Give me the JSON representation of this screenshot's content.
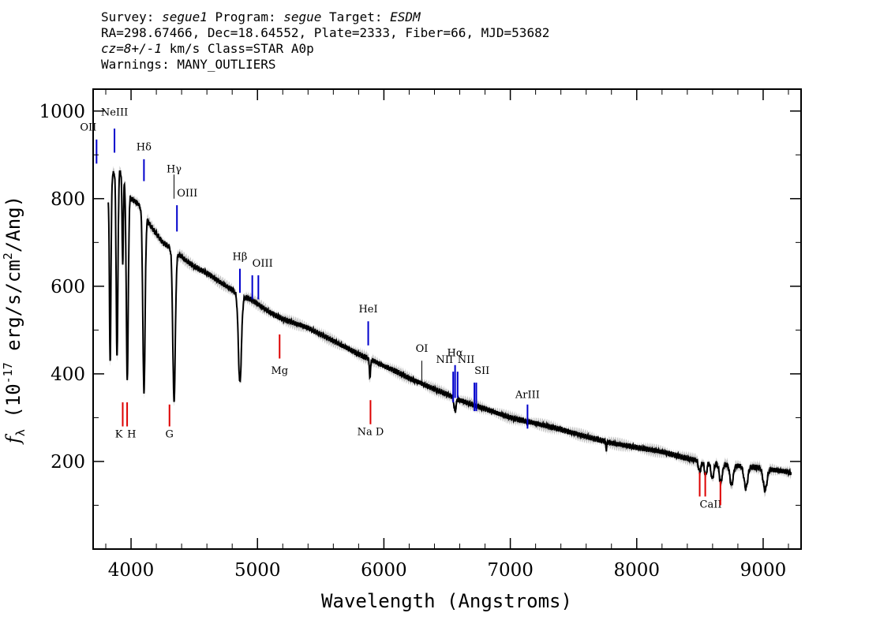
{
  "header": {
    "survey_label": "Survey:",
    "survey_value": "segue1",
    "program_label": "Program:",
    "program_value": "segue",
    "target_label": "Target:",
    "target_value": "ESDM",
    "line2": "RA=298.67466, Dec=18.64552, Plate=2333, Fiber=66, MJD=53682",
    "cz_value": "cz=8+/-1",
    "line3_rest": " km/s Class=STAR A0p",
    "line4": "Warnings: MANY_OUTLIERS"
  },
  "chart_data": {
    "type": "line",
    "title": "",
    "xlabel": "Wavelength (Angstroms)",
    "ylabel_main": "f",
    "ylabel_sub": "λ",
    "ylabel_units": " (10",
    "ylabel_exp": "-17",
    "ylabel_units2": " erg/s/cm",
    "ylabel_exp2": "2",
    "ylabel_units3": "/Ang)",
    "xlim": [
      3700,
      9300
    ],
    "ylim": [
      0,
      1050
    ],
    "x_ticks": [
      4000,
      5000,
      6000,
      7000,
      8000,
      9000
    ],
    "x_tick_labels": [
      "4000",
      "5000",
      "6000",
      "7000",
      "8000",
      "9000"
    ],
    "y_ticks": [
      200,
      400,
      600,
      800,
      1000
    ],
    "y_tick_labels": [
      "200",
      "400",
      "600",
      "800",
      "1000"
    ],
    "grid": false,
    "colors": {
      "spectrum": "#000000",
      "error": "#b0b0b0",
      "emission": "#0000cc",
      "absorption": "#dd0000",
      "thin": "#000000"
    },
    "continuum": [
      [
        3820,
        810
      ],
      [
        3850,
        850
      ],
      [
        3880,
        870
      ],
      [
        3920,
        860
      ],
      [
        3960,
        840
      ],
      [
        4000,
        800
      ],
      [
        4050,
        790
      ],
      [
        4100,
        770
      ],
      [
        4150,
        740
      ],
      [
        4200,
        720
      ],
      [
        4250,
        700
      ],
      [
        4300,
        690
      ],
      [
        4350,
        675
      ],
      [
        4400,
        668
      ],
      [
        4450,
        655
      ],
      [
        4500,
        645
      ],
      [
        4600,
        630
      ],
      [
        4700,
        610
      ],
      [
        4800,
        592
      ],
      [
        4850,
        580
      ],
      [
        4950,
        570
      ],
      [
        5000,
        560
      ],
      [
        5100,
        540
      ],
      [
        5200,
        525
      ],
      [
        5300,
        515
      ],
      [
        5400,
        505
      ],
      [
        5500,
        490
      ],
      [
        5600,
        475
      ],
      [
        5700,
        460
      ],
      [
        5800,
        445
      ],
      [
        5900,
        432
      ],
      [
        6000,
        418
      ],
      [
        6100,
        405
      ],
      [
        6200,
        390
      ],
      [
        6300,
        378
      ],
      [
        6400,
        365
      ],
      [
        6500,
        353
      ],
      [
        6600,
        340
      ],
      [
        6700,
        330
      ],
      [
        6800,
        320
      ],
      [
        7000,
        300
      ],
      [
        7200,
        287
      ],
      [
        7400,
        273
      ],
      [
        7600,
        257
      ],
      [
        7800,
        242
      ],
      [
        8000,
        232
      ],
      [
        8200,
        222
      ],
      [
        8400,
        207
      ],
      [
        8600,
        196
      ],
      [
        8800,
        190
      ],
      [
        9000,
        185
      ],
      [
        9100,
        180
      ],
      [
        9220,
        175
      ]
    ],
    "absorption_features": [
      {
        "center": 3835,
        "depth": 400,
        "width": 6
      },
      {
        "center": 3889,
        "depth": 430,
        "width": 7
      },
      {
        "center": 3934,
        "depth": 200,
        "width": 5
      },
      {
        "center": 3970,
        "depth": 440,
        "width": 8
      },
      {
        "center": 4102,
        "depth": 410,
        "width": 9
      },
      {
        "center": 4340,
        "depth": 340,
        "width": 10
      },
      {
        "center": 4861,
        "depth": 200,
        "width": 12
      },
      {
        "center": 5890,
        "depth": 40,
        "width": 5
      },
      {
        "center": 6563,
        "depth": 30,
        "width": 8
      },
      {
        "center": 7760,
        "depth": 20,
        "width": 3
      },
      {
        "center": 8498,
        "depth": 25,
        "width": 10
      },
      {
        "center": 8545,
        "depth": 30,
        "width": 10
      },
      {
        "center": 8598,
        "depth": 35,
        "width": 11
      },
      {
        "center": 8665,
        "depth": 40,
        "width": 12
      },
      {
        "center": 8750,
        "depth": 45,
        "width": 13
      },
      {
        "center": 8863,
        "depth": 50,
        "width": 14
      },
      {
        "center": 9015,
        "depth": 50,
        "width": 15
      }
    ],
    "line_markers": [
      {
        "label": "OII",
        "x": 3727,
        "y0": 880,
        "y1": 935,
        "label_y": 955,
        "color": "emission",
        "anchor": "end"
      },
      {
        "label": "NeIII",
        "x": 3869,
        "y0": 905,
        "y1": 960,
        "label_y": 990,
        "color": "emission",
        "anchor": "middle"
      },
      {
        "label": "Hδ",
        "x": 4102,
        "y0": 840,
        "y1": 890,
        "label_y": 910,
        "color": "emission",
        "anchor": "middle"
      },
      {
        "label": "Hγ",
        "x": 4340,
        "y0": 800,
        "y1": 855,
        "label_y": 860,
        "color": "thin",
        "anchor": "middle"
      },
      {
        "label": "OIII",
        "x": 4363,
        "y0": 725,
        "y1": 785,
        "label_y": 805,
        "color": "emission",
        "anchor": "start"
      },
      {
        "label": "Hβ",
        "x": 4861,
        "y0": 585,
        "y1": 640,
        "label_y": 660,
        "color": "emission",
        "anchor": "middle"
      },
      {
        "label": "OIII",
        "x": 4959,
        "y0": 570,
        "y1": 625,
        "label_y": 645,
        "color": "emission",
        "anchor": "start"
      },
      {
        "label": "",
        "x": 5007,
        "y0": 570,
        "y1": 625,
        "label_y": 0,
        "color": "emission",
        "anchor": "start"
      },
      {
        "label": "HeI",
        "x": 5876,
        "y0": 465,
        "y1": 520,
        "label_y": 540,
        "color": "emission",
        "anchor": "middle"
      },
      {
        "label": "OI",
        "x": 6300,
        "y0": 375,
        "y1": 430,
        "label_y": 450,
        "color": "thin",
        "anchor": "middle"
      },
      {
        "label": "NII",
        "x": 6548,
        "y0": 335,
        "y1": 405,
        "label_y": 425,
        "color": "emission",
        "anchor": "end"
      },
      {
        "label": "Hα",
        "x": 6563,
        "y0": 345,
        "y1": 420,
        "label_y": 440,
        "color": "emission",
        "anchor": "middle"
      },
      {
        "label": "NII",
        "x": 6583,
        "y0": 345,
        "y1": 405,
        "label_y": 425,
        "color": "emission",
        "anchor": "start"
      },
      {
        "label": "SII",
        "x": 6716,
        "y0": 315,
        "y1": 380,
        "label_y": 400,
        "color": "emission",
        "anchor": "start"
      },
      {
        "label": "",
        "x": 6731,
        "y0": 315,
        "y1": 380,
        "label_y": 0,
        "color": "emission",
        "anchor": "start"
      },
      {
        "label": "ArIII",
        "x": 7136,
        "y0": 275,
        "y1": 330,
        "label_y": 345,
        "color": "emission",
        "anchor": "middle"
      },
      {
        "label": "Mg",
        "x": 5175,
        "y0": 435,
        "y1": 490,
        "label_y": 400,
        "color": "absorption",
        "anchor": "middle"
      },
      {
        "label": "K",
        "x": 3934,
        "y0": 280,
        "y1": 335,
        "label_y": 255,
        "color": "absorption",
        "anchor": "end"
      },
      {
        "label": "H",
        "x": 3969,
        "y0": 280,
        "y1": 335,
        "label_y": 255,
        "color": "absorption",
        "anchor": "start"
      },
      {
        "label": "G",
        "x": 4304,
        "y0": 280,
        "y1": 330,
        "label_y": 255,
        "color": "absorption",
        "anchor": "middle"
      },
      {
        "label": "Na D",
        "x": 5894,
        "y0": 285,
        "y1": 340,
        "label_y": 260,
        "color": "absorption",
        "anchor": "middle"
      },
      {
        "label": "CaII",
        "x": 8498,
        "y0": 120,
        "y1": 175,
        "label_y": 95,
        "color": "absorption",
        "anchor": "start"
      },
      {
        "label": "",
        "x": 8542,
        "y0": 120,
        "y1": 175,
        "label_y": 0,
        "color": "absorption",
        "anchor": "start"
      },
      {
        "label": "",
        "x": 8662,
        "y0": 100,
        "y1": 155,
        "label_y": 0,
        "color": "absorption",
        "anchor": "start"
      }
    ]
  }
}
